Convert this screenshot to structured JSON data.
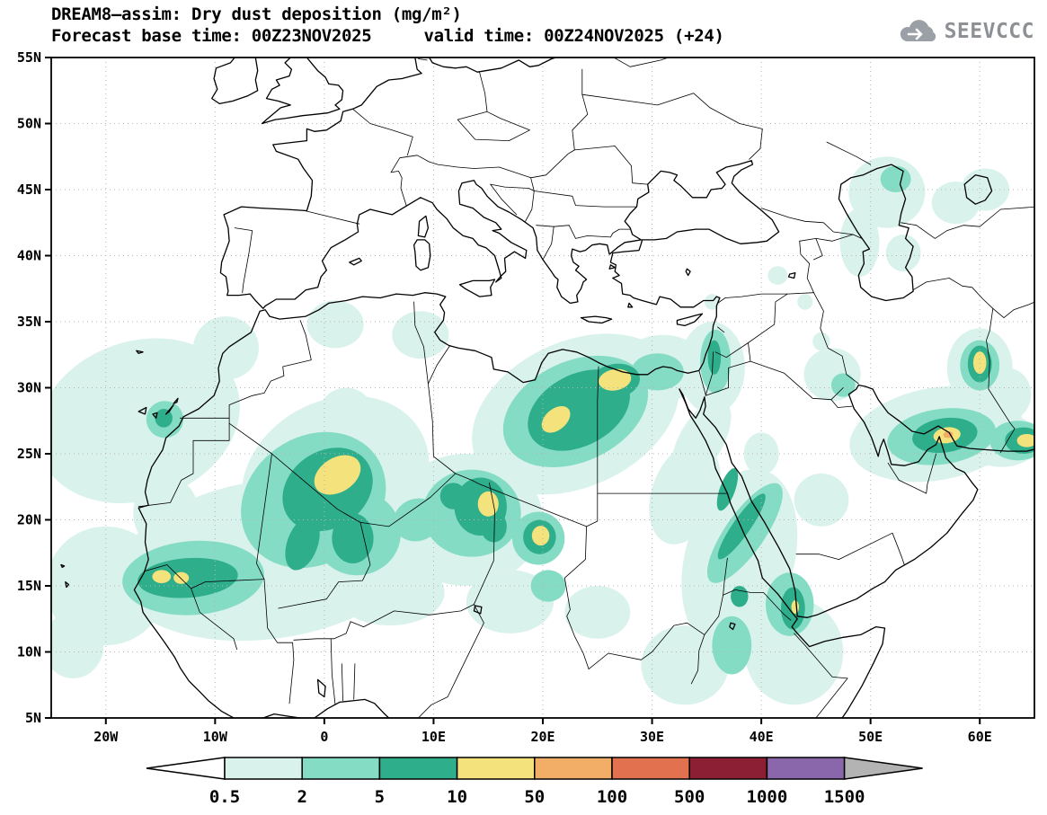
{
  "header": {
    "title_line1": "DREAM8–assim: Dry dust deposition (mg/m²)",
    "title_line2_left": "Forecast base time: 00Z23NOV2025",
    "title_line2_right": "valid time: 00Z24NOV2025 (+24)",
    "logo_text": "SEEVCCC"
  },
  "map": {
    "lat_labels": [
      "55N",
      "50N",
      "45N",
      "40N",
      "35N",
      "30N",
      "25N",
      "20N",
      "15N",
      "10N",
      "5N"
    ],
    "lon_labels": [
      "20W",
      "10W",
      "0",
      "10E",
      "20E",
      "30E",
      "40E",
      "50E",
      "60E"
    ]
  },
  "colorbar": {
    "tick_labels": [
      "0.5",
      "2",
      "5",
      "10",
      "50",
      "100",
      "500",
      "1000",
      "1500"
    ],
    "below_color": "#ffffff",
    "segment_colors": [
      "#daf2ec",
      "#85dcc4",
      "#2fae8c",
      "#f4e27c",
      "#f2ae66",
      "#e2714f",
      "#8c1f33",
      "#8a66aa"
    ],
    "above_color": "#b3b3b3"
  },
  "chart_data": {
    "type": "contour-map",
    "model": "DREAM8-assim",
    "variable": "Dry dust deposition",
    "units": "mg/m²",
    "base_time": "00Z23NOV2025",
    "valid_time": "00Z24NOV2025 (+24)",
    "extent": {
      "lon_min": -25,
      "lon_max": 65,
      "lat_min": 5,
      "lat_max": 55
    },
    "levels": [
      0.5,
      2,
      5,
      10,
      50,
      100,
      500,
      1000,
      1500
    ],
    "level_fill_colors": [
      "#daf2ec",
      "#85dcc4",
      "#2fae8c",
      "#f4e27c",
      "#f2ae66",
      "#e2714f",
      "#8c1f33",
      "#8a66aa"
    ],
    "features_format": "level_index,lon,lat,rx_deg,ry_deg,rotation_deg",
    "features": [
      [
        0,
        -17,
        27.5,
        9.5,
        6,
        -20
      ],
      [
        0,
        -20,
        15,
        5.5,
        4.5,
        0
      ],
      [
        0,
        -5,
        17,
        14,
        6,
        -8
      ],
      [
        0,
        1,
        23,
        9,
        6,
        -30
      ],
      [
        0,
        13,
        20,
        7,
        5,
        0
      ],
      [
        0,
        23,
        28,
        10,
        5.5,
        -25
      ],
      [
        0,
        31,
        31.5,
        4,
        2.5,
        0
      ],
      [
        0,
        35.5,
        31.5,
        3,
        3.5,
        0
      ],
      [
        0,
        38,
        17,
        5,
        7,
        15
      ],
      [
        0,
        43,
        10,
        4.5,
        4,
        0
      ],
      [
        0,
        33,
        22,
        3,
        4,
        20
      ],
      [
        0,
        45.5,
        21.5,
        2.5,
        2,
        0
      ],
      [
        0,
        56,
        26.5,
        8,
        3.5,
        -10
      ],
      [
        0,
        60,
        31.5,
        3,
        3,
        0
      ],
      [
        0,
        51.5,
        44.8,
        3.5,
        2.7,
        0
      ],
      [
        0,
        57.8,
        44,
        2.2,
        1.6,
        0
      ],
      [
        0,
        62,
        26,
        3.5,
        2,
        0
      ],
      [
        0,
        -23,
        10.5,
        2.8,
        2.5,
        0
      ],
      [
        0,
        8.8,
        34,
        2.6,
        1.8,
        0
      ],
      [
        0,
        49,
        41,
        1.8,
        2.6,
        0
      ],
      [
        0,
        53,
        40.2,
        1.6,
        1.4,
        0
      ],
      [
        0,
        1,
        34.8,
        2.6,
        1.8,
        0
      ],
      [
        0,
        -9,
        33,
        3,
        2.4,
        0
      ],
      [
        0,
        6,
        14.5,
        5,
        2.5,
        0
      ],
      [
        0,
        17,
        13.8,
        4,
        2.4,
        0
      ],
      [
        0,
        25,
        13,
        3,
        2,
        0
      ],
      [
        0,
        33,
        9,
        4,
        3,
        0
      ],
      [
        0,
        34.5,
        26,
        2,
        3.5,
        30
      ],
      [
        0,
        40,
        25,
        1.6,
        1.6,
        0
      ],
      [
        0,
        46.5,
        31,
        2.6,
        2,
        0
      ],
      [
        0,
        45.5,
        33.5,
        0.8,
        0.7,
        0
      ],
      [
        0,
        44,
        36.5,
        0.7,
        0.6,
        0
      ],
      [
        0,
        41.5,
        38.5,
        0.9,
        0.7,
        0
      ],
      [
        0,
        35.5,
        36.5,
        0.7,
        0.6,
        0
      ],
      [
        0,
        60.5,
        45,
        2.2,
        1.6,
        0
      ],
      [
        0,
        2,
        28,
        2.5,
        2,
        0
      ],
      [
        0,
        -14.5,
        20.5,
        3,
        2.8,
        0
      ],
      [
        0,
        62.5,
        29.5,
        2.2,
        2,
        0
      ],
      [
        1,
        -12,
        15.6,
        6.5,
        2.8,
        -4
      ],
      [
        1,
        -1,
        21.5,
        7,
        4.8,
        -35
      ],
      [
        1,
        3,
        19,
        4,
        3.2,
        0
      ],
      [
        1,
        13.5,
        20.5,
        4.5,
        3.3,
        0
      ],
      [
        1,
        19.6,
        18.6,
        2.4,
        2,
        0
      ],
      [
        1,
        23,
        28.2,
        7,
        3.8,
        -25
      ],
      [
        1,
        30.5,
        31.2,
        2.4,
        1.4,
        0
      ],
      [
        1,
        38.5,
        19,
        1.8,
        4.5,
        35
      ],
      [
        1,
        42.6,
        13.6,
        2.2,
        2.4,
        0
      ],
      [
        1,
        56.5,
        26.3,
        5,
        2.1,
        -8
      ],
      [
        1,
        60,
        31.7,
        1.8,
        1.9,
        0
      ],
      [
        1,
        -14.6,
        27.6,
        1.7,
        1.4,
        0
      ],
      [
        1,
        63.5,
        26,
        2.6,
        1.5,
        0
      ],
      [
        1,
        37.3,
        10.5,
        1.8,
        2.2,
        0
      ],
      [
        1,
        8.5,
        20,
        2.2,
        1.6,
        -20
      ],
      [
        1,
        20.5,
        15,
        1.6,
        1.2,
        0
      ],
      [
        1,
        35.8,
        32,
        1.4,
        2.4,
        0
      ],
      [
        1,
        47.5,
        30.2,
        1.1,
        0.9,
        0
      ],
      [
        1,
        52.3,
        45.8,
        1.4,
        1,
        0
      ],
      [
        2,
        -12.5,
        15.6,
        4.6,
        1.5,
        -4
      ],
      [
        2,
        0.3,
        22.3,
        4.4,
        2.9,
        -35
      ],
      [
        2,
        2.6,
        18.6,
        1.9,
        1.9,
        0
      ],
      [
        2,
        -2,
        18.2,
        1.4,
        2.1,
        20
      ],
      [
        2,
        14.3,
        21,
        2.4,
        2.2,
        0
      ],
      [
        2,
        19.7,
        18.7,
        1.5,
        1.3,
        0
      ],
      [
        2,
        23.3,
        28.3,
        5,
        2.7,
        -28
      ],
      [
        2,
        26.6,
        30.5,
        2.3,
        1.3,
        -10
      ],
      [
        2,
        38.2,
        19.5,
        0.8,
        3,
        35
      ],
      [
        2,
        42.9,
        13.3,
        1.1,
        1.6,
        0
      ],
      [
        2,
        56.8,
        26.4,
        3,
        1.3,
        -8
      ],
      [
        2,
        60,
        31.8,
        1.1,
        1.4,
        0
      ],
      [
        2,
        64,
        26,
        1.7,
        1,
        0
      ],
      [
        2,
        -14.7,
        27.7,
        0.8,
        0.7,
        0
      ],
      [
        2,
        36.9,
        22.3,
        0.7,
        1.7,
        20
      ],
      [
        2,
        35.7,
        32.3,
        0.6,
        1.3,
        0
      ],
      [
        2,
        38,
        14.2,
        0.8,
        0.8,
        0
      ],
      [
        2,
        15.5,
        19.5,
        1.2,
        1.2,
        0
      ],
      [
        2,
        11.8,
        21.8,
        1.2,
        1,
        0
      ],
      [
        3,
        1.2,
        23.4,
        2.3,
        1.3,
        -32
      ],
      [
        3,
        -14.9,
        15.7,
        0.85,
        0.5,
        0
      ],
      [
        3,
        -13.1,
        15.6,
        0.7,
        0.45,
        0
      ],
      [
        3,
        15,
        21.2,
        0.95,
        0.95,
        0
      ],
      [
        3,
        19.8,
        18.8,
        0.8,
        0.75,
        0
      ],
      [
        3,
        21.2,
        27.6,
        1.5,
        0.8,
        -40
      ],
      [
        3,
        26.6,
        30.6,
        1.5,
        0.8,
        -10
      ],
      [
        3,
        57,
        26.4,
        1.25,
        0.6,
        -8
      ],
      [
        3,
        60,
        31.9,
        0.6,
        0.85,
        0
      ],
      [
        3,
        64.3,
        26,
        0.9,
        0.5,
        0
      ],
      [
        3,
        43.1,
        13.4,
        0.35,
        0.5,
        0
      ],
      [
        4,
        57.1,
        26.45,
        0.45,
        0.25,
        -8
      ]
    ]
  }
}
